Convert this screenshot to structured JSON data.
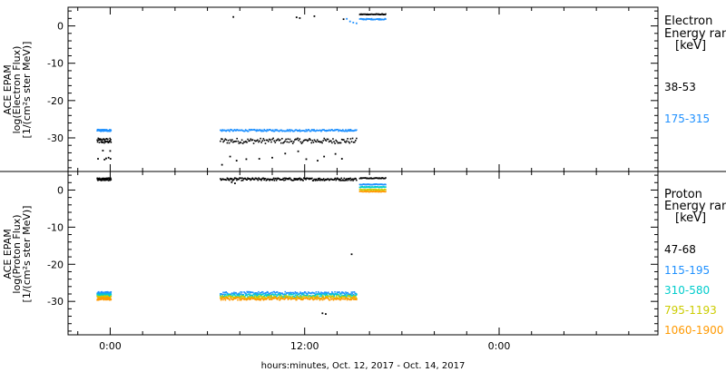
{
  "chart_data": [
    {
      "type": "scatter",
      "ylabel": [
        "ACE EPAM",
        "log(Electron Flux)",
        "[1/(cm²s ster MeV)]"
      ],
      "ylim": [
        -39,
        5
      ],
      "yticks": [
        0,
        -10,
        -20,
        -30
      ],
      "legend": {
        "title": [
          "Electron",
          "Energy ran",
          "[keV]"
        ],
        "placement": "right"
      },
      "series": [
        {
          "name": "38-53",
          "color": "#000000",
          "segments": [
            {
              "x": [
                -0.8,
                0.05
              ],
              "y": -30.8,
              "jitter": 0.7,
              "count": 40
            },
            {
              "x": [
                6.8,
                15.2
              ],
              "y": -30.8,
              "jitter": 0.7,
              "count": 140
            },
            {
              "x": [
                15.4,
                17.0
              ],
              "y": 3.1,
              "jitter": 0.1,
              "count": 42
            }
          ],
          "points": [
            [
              -0.75,
              -35.6
            ],
            [
              -0.45,
              -33.4
            ],
            [
              -0.35,
              -35.8
            ],
            [
              -0.25,
              -35.5
            ],
            [
              -0.1,
              -35.3
            ],
            [
              0.0,
              -33.5
            ],
            [
              0.02,
              -35.6
            ],
            [
              6.9,
              -37.2
            ],
            [
              7.4,
              -35.0
            ],
            [
              7.8,
              -36.1
            ],
            [
              8.4,
              -35.7
            ],
            [
              9.2,
              -35.6
            ],
            [
              10.0,
              -35.3
            ],
            [
              10.8,
              -34.2
            ],
            [
              11.6,
              -33.6
            ],
            [
              12.1,
              -35.7
            ],
            [
              12.8,
              -36.1
            ],
            [
              13.2,
              -35.0
            ],
            [
              13.9,
              -34.3
            ],
            [
              14.3,
              -35.6
            ],
            [
              7.6,
              2.4
            ],
            [
              11.5,
              2.3
            ],
            [
              11.7,
              2.1
            ],
            [
              12.6,
              2.6
            ],
            [
              14.4,
              1.8
            ]
          ]
        },
        {
          "name": "175-315",
          "color": "#1e90ff",
          "segments": [
            {
              "x": [
                -0.8,
                0.05
              ],
              "y": -28.0,
              "jitter": 0.25,
              "count": 55
            },
            {
              "x": [
                6.8,
                15.2
              ],
              "y": -28.0,
              "jitter": 0.25,
              "count": 190
            },
            {
              "x": [
                15.4,
                17.0
              ],
              "y": 1.8,
              "jitter": 0.15,
              "count": 42
            }
          ],
          "points": [
            [
              14.6,
              1.9
            ],
            [
              14.8,
              1.2
            ],
            [
              15.0,
              0.9
            ],
            [
              15.2,
              0.7
            ]
          ]
        }
      ]
    },
    {
      "type": "scatter",
      "ylabel": [
        "ACE EPAM",
        "log(Proton Flux)",
        "[1/(cm²s ster MeV)]"
      ],
      "ylim": [
        -39,
        5
      ],
      "yticks": [
        0,
        -10,
        -20,
        -30
      ],
      "legend": {
        "title": [
          "Proton",
          "Energy ran",
          "[keV]"
        ],
        "placement": "right"
      },
      "series": [
        {
          "name": "47-68",
          "color": "#000000",
          "segments": [
            {
              "x": [
                -0.8,
                0.05
              ],
              "y": 2.9,
              "jitter": 0.35,
              "count": 55
            },
            {
              "x": [
                6.8,
                15.2
              ],
              "y": 2.9,
              "jitter": 0.35,
              "count": 200
            },
            {
              "x": [
                15.4,
                17.0
              ],
              "y": 3.2,
              "jitter": 0.1,
              "count": 42
            }
          ],
          "points": [
            [
              7.5,
              2.1
            ],
            [
              7.7,
              1.8
            ],
            [
              14.9,
              -17.3
            ],
            [
              13.1,
              -33.2
            ],
            [
              13.3,
              -33.4
            ]
          ]
        },
        {
          "name": "115-195",
          "color": "#1e90ff",
          "segments": [
            {
              "x": [
                -0.8,
                0.05
              ],
              "y": -27.8,
              "jitter": 0.4,
              "count": 55
            },
            {
              "x": [
                6.8,
                15.2
              ],
              "y": -27.8,
              "jitter": 0.4,
              "count": 190
            },
            {
              "x": [
                15.4,
                17.0
              ],
              "y": 1.5,
              "jitter": 0.1,
              "count": 42
            }
          ],
          "points": []
        },
        {
          "name": "310-580",
          "color": "#00cccc",
          "segments": [
            {
              "x": [
                -0.8,
                0.05
              ],
              "y": -28.4,
              "jitter": 0.4,
              "count": 55
            },
            {
              "x": [
                6.8,
                15.2
              ],
              "y": -28.4,
              "jitter": 0.4,
              "count": 190
            },
            {
              "x": [
                15.4,
                17.0
              ],
              "y": 0.8,
              "jitter": 0.1,
              "count": 42
            }
          ],
          "points": []
        },
        {
          "name": "795-1193",
          "color": "#cccc00",
          "segments": [
            {
              "x": [
                -0.8,
                0.05
              ],
              "y": -28.9,
              "jitter": 0.4,
              "count": 55
            },
            {
              "x": [
                6.8,
                15.2
              ],
              "y": -28.9,
              "jitter": 0.4,
              "count": 190
            },
            {
              "x": [
                15.4,
                17.0
              ],
              "y": 0.1,
              "jitter": 0.1,
              "count": 42
            }
          ],
          "points": []
        },
        {
          "name": "1060-1900",
          "color": "#ff9900",
          "segments": [
            {
              "x": [
                -0.8,
                0.05
              ],
              "y": -29.3,
              "jitter": 0.35,
              "count": 55
            },
            {
              "x": [
                6.8,
                15.2
              ],
              "y": -29.3,
              "jitter": 0.35,
              "count": 190
            },
            {
              "x": [
                15.4,
                17.0
              ],
              "y": -0.4,
              "jitter": 0.1,
              "count": 42
            }
          ],
          "points": []
        }
      ]
    }
  ],
  "x_axis": {
    "label": "hours:minutes, Oct. 12, 2017 - Oct. 14, 2017",
    "range_hours": [
      -2.6,
      33.8
    ],
    "ticks": [
      {
        "hours": 0,
        "label": "0:00"
      },
      {
        "hours": 12,
        "label": "12:00"
      },
      {
        "hours": 24,
        "label": "0:00"
      }
    ],
    "minor_tick_hours": 2
  }
}
